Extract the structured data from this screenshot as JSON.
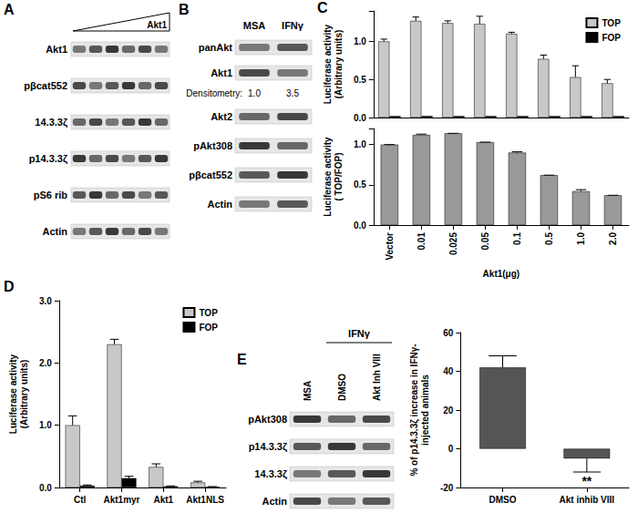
{
  "panels": {
    "A": {
      "label": "A",
      "ramp_label": "Akt1",
      "rows": [
        "Akt1",
        "pβcat552",
        "14.3.3ζ",
        "p14.3.3ζ",
        "pS6 rib",
        "Actin"
      ]
    },
    "B": {
      "label": "B",
      "columns": [
        "MSA",
        "IFNγ"
      ],
      "rows_top": [
        "panAkt",
        "Akt1"
      ],
      "densitometry": {
        "label": "Densitometry:",
        "values": [
          "1.0",
          "3.5"
        ]
      },
      "rows_bottom": [
        "Akt2",
        "pAkt308",
        "pβcat552",
        "Actin"
      ]
    },
    "C": {
      "label": "C"
    },
    "D": {
      "label": "D"
    },
    "E": {
      "label": "E",
      "group_label": "IFNγ",
      "columns": [
        "MSA",
        "DMSO",
        "Akt Inh VIII"
      ],
      "rows": [
        "pAkt308",
        "p14.3.3ζ",
        "14.3.3ζ",
        "Actin"
      ]
    }
  },
  "chart_data": [
    {
      "type": "bar",
      "ylabel": "Luciferase activity\n(Arbitrary units)",
      "categories": [
        "Vector",
        "0.01",
        "0.025",
        "0.05",
        "0.1",
        "0.5",
        "1.0",
        "2.0"
      ],
      "series": [
        {
          "name": "TOP",
          "color": "#c8c8c8",
          "values": [
            1.0,
            1.27,
            1.24,
            1.23,
            1.1,
            0.77,
            0.53,
            0.45
          ],
          "errors": [
            0.03,
            0.05,
            0.03,
            0.1,
            0.02,
            0.05,
            0.15,
            0.05
          ]
        },
        {
          "name": "FOP",
          "color": "#000000",
          "values": [
            0.02,
            0.02,
            0.02,
            0.02,
            0.02,
            0.02,
            0.02,
            0.02
          ]
        }
      ],
      "ylim": [
        0,
        1.4
      ],
      "yticks": [
        {
          "value": 0,
          "label": "0.0"
        },
        {
          "value": 0.5,
          "label": "0.5"
        },
        {
          "value": 1,
          "label": "1.0"
        }
      ],
      "legend": "top-right",
      "tick_labels": "y",
      "grid": false
    },
    {
      "type": "bar",
      "ylabel": "Luciferase activity\n( TOP/FOP)",
      "xlabel": "Akt1(μg)",
      "categories": [
        "Vector",
        "0.01",
        "0.025",
        "0.05",
        "0.1",
        "0.5",
        "1.0",
        "2.0"
      ],
      "values": [
        1.0,
        1.12,
        1.14,
        1.03,
        0.9,
        0.62,
        0.42,
        0.37
      ],
      "errors": [
        0,
        0.01,
        0,
        0,
        0.01,
        0,
        0.02,
        0
      ],
      "color": "#999999",
      "ylim": [
        0,
        1.2
      ],
      "yticks": [
        {
          "value": 0,
          "label": "0.0"
        },
        {
          "value": 0.5,
          "label": "0.5"
        },
        {
          "value": 1,
          "label": "1.0"
        }
      ],
      "grid": false
    },
    {
      "type": "bar",
      "ylabel": "Luciferase activity\n(Arbitrary units)",
      "categories": [
        "Ctl",
        "Akt1myr",
        "Akt1",
        "Akt1NLS"
      ],
      "series": [
        {
          "name": "TOP",
          "color": "#c8c8c8",
          "values": [
            1.0,
            2.3,
            0.33,
            0.08
          ],
          "errors": [
            0.15,
            0.08,
            0.05,
            0.02
          ]
        },
        {
          "name": "FOP",
          "color": "#000000",
          "values": [
            0.03,
            0.15,
            0.02,
            0.01
          ],
          "errors": [
            0.01,
            0.03,
            0.005,
            0.005
          ]
        }
      ],
      "ylim": [
        0,
        3
      ],
      "yticks": [
        {
          "value": 0,
          "label": "0.0"
        },
        {
          "value": 1,
          "label": "1.0"
        },
        {
          "value": 2,
          "label": "2.0"
        },
        {
          "value": 3,
          "label": "3.0"
        }
      ],
      "legend": "top-right",
      "grid": false
    },
    {
      "type": "bar",
      "ylabel": "% of p14.3.3ζ increase in IFNγ-\ninjected animals",
      "categories": [
        "DMSO",
        "Akt inhib VIII"
      ],
      "values": [
        42,
        -5
      ],
      "errors": [
        6,
        7
      ],
      "color": "#555555",
      "ylim": [
        -20,
        60
      ],
      "yticks": [
        -20,
        0,
        20,
        40,
        60
      ],
      "grid": false,
      "annotations": [
        {
          "text": "**",
          "category": "Akt inhib VIII"
        }
      ]
    }
  ]
}
